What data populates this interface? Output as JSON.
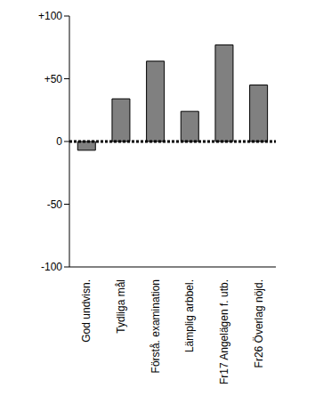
{
  "chart_data": {
    "type": "bar",
    "categories": [
      "God undvisn.",
      "Tydliga mål",
      "Förstå. examination",
      "Lämplig arbbel.",
      "Fr17 Angelägen f. utb.",
      "Fr26 Överlag nöjd."
    ],
    "values": [
      -7,
      34,
      64,
      24,
      77,
      45
    ],
    "color": "#808080",
    "ylim": [
      -100,
      100
    ],
    "yticks": [
      -100,
      -50,
      0,
      {
        "value": 50,
        "label": "+50"
      },
      {
        "value": 100,
        "label": "+100"
      }
    ],
    "grid": false
  }
}
